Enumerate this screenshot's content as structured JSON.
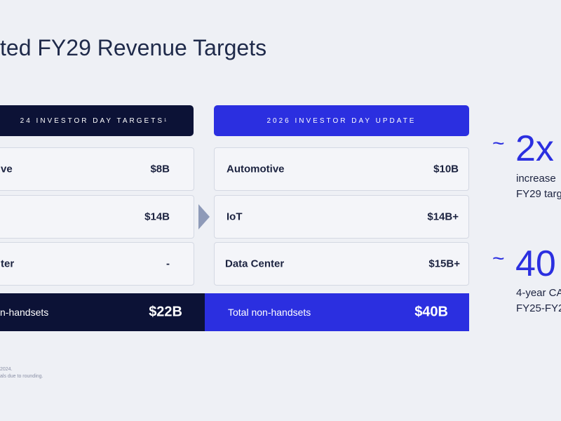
{
  "header": {
    "title": "ted FY29 Revenue Targets"
  },
  "left_panel": {
    "heading": "24 INVESTOR DAY TARGETS",
    "heading_note": "1",
    "rows": [
      {
        "label": "ve",
        "value": "$8B"
      },
      {
        "value": "$14B"
      },
      {
        "label": "ter",
        "value": "-"
      }
    ],
    "total": {
      "label": "n-handsets",
      "value": "$22B"
    }
  },
  "right_panel": {
    "heading": "2026 INVESTOR DAY UPDATE",
    "rows": [
      {
        "label": "Automotive",
        "value": "$10B"
      },
      {
        "label": "IoT",
        "value": "$14B+"
      },
      {
        "label": "Data Center",
        "value": "$15B+"
      }
    ],
    "total": {
      "label": "Total non-handsets",
      "value": "$40B"
    }
  },
  "stats": [
    {
      "prefix": "~",
      "figure": "2x",
      "lines": [
        "increase",
        "FY29 targ"
      ]
    },
    {
      "prefix": "~",
      "figure": "40",
      "lines": [
        "4-year CA",
        "FY25-FY2"
      ]
    }
  ],
  "footnotes": [
    "2024.",
    "als due to rounding."
  ]
}
